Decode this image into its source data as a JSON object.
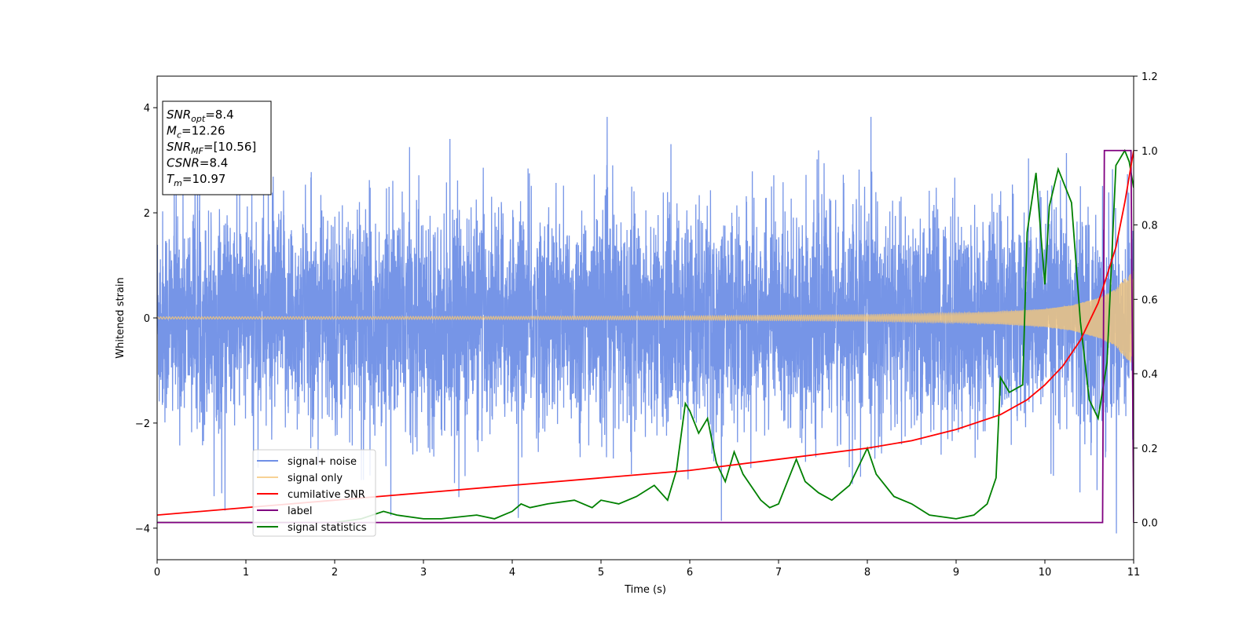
{
  "chart_data": {
    "type": "line",
    "xlabel": "Time (s)",
    "ylabel": "Whitened strain",
    "xlim": [
      0,
      11
    ],
    "ylim_left": [
      -4.6,
      4.6
    ],
    "ylim_right": [
      -0.1,
      1.2
    ],
    "x_ticks": [
      0,
      1,
      2,
      3,
      4,
      5,
      6,
      7,
      8,
      9,
      10,
      11
    ],
    "x_tick_labels": [
      "0",
      "1",
      "2",
      "3",
      "4",
      "5",
      "6",
      "7",
      "8",
      "9",
      "10",
      "11"
    ],
    "y_ticks_left": [
      -4,
      -2,
      0,
      2,
      4
    ],
    "y_tick_labels_left": [
      "−4",
      "−2",
      "0",
      "2",
      "4"
    ],
    "y_ticks_right": [
      0.0,
      0.2,
      0.4,
      0.6,
      0.8,
      1.0,
      1.2
    ],
    "y_tick_labels_right": [
      "0.0",
      "0.2",
      "0.4",
      "0.6",
      "0.8",
      "1.0",
      "1.2"
    ],
    "legend_position": "lower-left",
    "annotation": {
      "lines": [
        {
          "base": "SNR",
          "sub": "opt",
          "rest": "=8.4"
        },
        {
          "base": "M",
          "sub": "c",
          "rest": "=12.26"
        },
        {
          "base": "SNR",
          "sub": "MF",
          "rest": "=[10.56]"
        },
        {
          "base": "CSNR",
          "sub": "",
          "rest": "=8.4"
        },
        {
          "base": "T",
          "sub": "m",
          "rest": "=10.97"
        }
      ]
    },
    "series": [
      {
        "name": "signal+ noise",
        "axis": "left",
        "color": "#6f8fe6",
        "description_values": {
          "typical_band": [
            -2.0,
            2.0
          ],
          "max": 4.15,
          "min": -4.1
        }
      },
      {
        "name": "signal only",
        "axis": "left",
        "color": "#f5c77a",
        "envelope": {
          "x": [
            0,
            2,
            4,
            6,
            8,
            9,
            9.5,
            10,
            10.3,
            10.6,
            10.8,
            10.9,
            11.0
          ],
          "amp": [
            0.02,
            0.025,
            0.03,
            0.04,
            0.06,
            0.09,
            0.12,
            0.17,
            0.24,
            0.38,
            0.55,
            0.75,
            0.9
          ]
        }
      },
      {
        "name": "cumilative SNR",
        "axis": "right",
        "color": "#ff0000",
        "x": [
          0,
          1,
          2,
          3,
          4,
          5,
          6,
          7,
          8,
          8.5,
          9,
          9.5,
          9.8,
          10,
          10.2,
          10.4,
          10.6,
          10.8,
          10.9,
          11.0
        ],
        "y": [
          0.02,
          0.04,
          0.06,
          0.08,
          0.1,
          0.12,
          0.14,
          0.17,
          0.2,
          0.22,
          0.25,
          0.29,
          0.33,
          0.37,
          0.42,
          0.49,
          0.59,
          0.74,
          0.86,
          1.0
        ]
      },
      {
        "name": "label",
        "axis": "right",
        "color": "#800080",
        "x": [
          0,
          10.65,
          10.67,
          10.97,
          11.0
        ],
        "y": [
          0.0,
          0.0,
          1.0,
          1.0,
          0.0
        ]
      },
      {
        "name": "signal statistics",
        "axis": "right",
        "color": "#008000",
        "x": [
          0,
          0.5,
          1.0,
          1.5,
          2.0,
          2.3,
          2.55,
          2.7,
          3.0,
          3.2,
          3.6,
          3.8,
          4.0,
          4.1,
          4.2,
          4.4,
          4.7,
          4.9,
          5.0,
          5.2,
          5.4,
          5.6,
          5.75,
          5.85,
          5.95,
          6.0,
          6.1,
          6.2,
          6.3,
          6.4,
          6.5,
          6.6,
          6.8,
          6.9,
          7.0,
          7.05,
          7.2,
          7.3,
          7.45,
          7.6,
          7.8,
          8.0,
          8.1,
          8.3,
          8.5,
          8.7,
          9.0,
          9.2,
          9.35,
          9.45,
          9.5,
          9.6,
          9.75,
          9.8,
          9.9,
          10.0,
          10.05,
          10.15,
          10.3,
          10.4,
          10.5,
          10.6,
          10.7,
          10.8,
          10.9,
          10.95,
          11.0
        ],
        "y": [
          0.0,
          0.0,
          0.0,
          0.0,
          0.0,
          0.01,
          0.03,
          0.02,
          0.01,
          0.01,
          0.02,
          0.01,
          0.03,
          0.05,
          0.04,
          0.05,
          0.06,
          0.04,
          0.06,
          0.05,
          0.07,
          0.1,
          0.06,
          0.14,
          0.32,
          0.3,
          0.24,
          0.28,
          0.16,
          0.11,
          0.19,
          0.13,
          0.06,
          0.04,
          0.05,
          0.08,
          0.17,
          0.11,
          0.08,
          0.06,
          0.1,
          0.2,
          0.13,
          0.07,
          0.05,
          0.02,
          0.01,
          0.02,
          0.05,
          0.12,
          0.39,
          0.35,
          0.37,
          0.78,
          0.94,
          0.64,
          0.85,
          0.95,
          0.86,
          0.54,
          0.33,
          0.28,
          0.43,
          0.96,
          1.0,
          0.97,
          0.9
        ]
      }
    ]
  }
}
